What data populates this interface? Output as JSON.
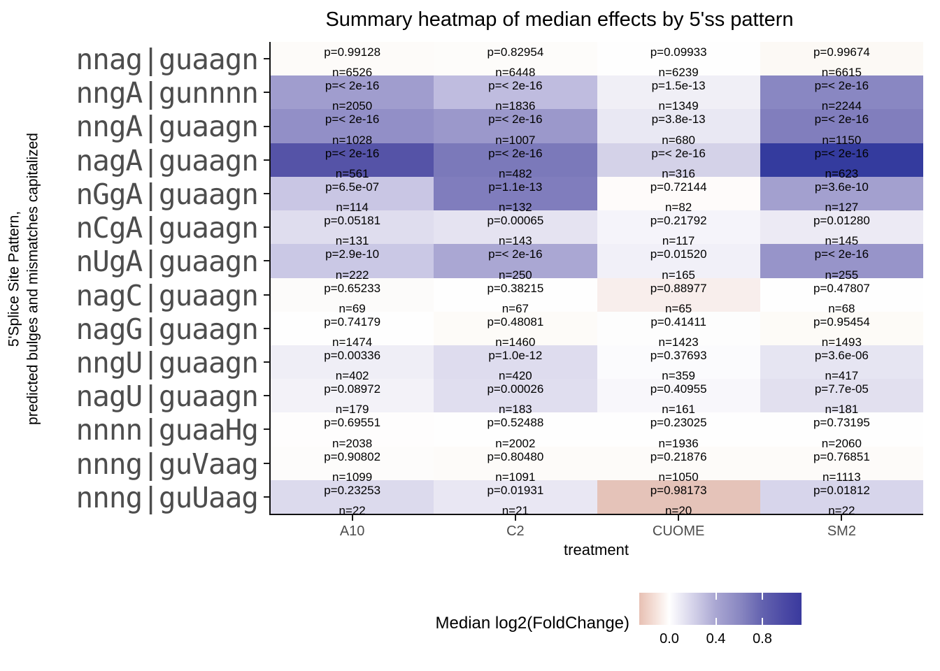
{
  "title": "Summary heatmap of median effects by 5'ss pattern",
  "y_axis": {
    "title_line1": "5'Splice Site Pattern,",
    "title_line2": "predicted bulges and mismatches capitalized"
  },
  "x_axis": {
    "title": "treatment",
    "categories": [
      "A10",
      "C2",
      "CUOME",
      "SM2"
    ]
  },
  "legend": {
    "title": "Median log2(FoldChange)",
    "tick_labels": [
      "0.0",
      "0.4",
      "0.8"
    ],
    "gradient_left_color": "#e7c0b3",
    "gradient_mid_color": "#ffffff",
    "gradient_right_color": "#3a3a9e"
  },
  "chart_data": {
    "type": "heatmap",
    "title": "Summary heatmap of median effects by 5'ss pattern",
    "xlabel": "treatment",
    "ylabel": "5'Splice Site Pattern, predicted bulges and mismatches capitalized",
    "columns": [
      "A10",
      "C2",
      "CUOME",
      "SM2"
    ],
    "cell_text_format": [
      "p=<p>",
      "n=<n>"
    ],
    "colorbar": {
      "label": "Median log2(FoldChange)",
      "tick_values": [
        0.0,
        0.4,
        0.8
      ],
      "approx_range": [
        -0.26,
        1.14
      ],
      "negative_color": "#e7c0b3",
      "zero_color": "#ffffff",
      "positive_color": "#3a3a9e"
    },
    "rows": [
      {
        "label": "nnag|guaagn",
        "cells": [
          {
            "p": "0.99128",
            "n": 6526,
            "color": "#fdfbf9"
          },
          {
            "p": "0.82954",
            "n": 6448,
            "color": "#fdfcfa"
          },
          {
            "p": "0.09933",
            "n": 6239,
            "color": "#fefefe"
          },
          {
            "p": "0.99674",
            "n": 6615,
            "color": "#fcf9f5"
          }
        ]
      },
      {
        "label": "nngA|gunnnn",
        "cells": [
          {
            "p": "< 2e-16",
            "n": 2050,
            "color": "#a09dce"
          },
          {
            "p": "< 2e-16",
            "n": 1836,
            "color": "#bfbcdf"
          },
          {
            "p": "1.5e-13",
            "n": 1349,
            "color": "#f0eff6"
          },
          {
            "p": "< 2e-16",
            "n": 2244,
            "color": "#8987c2"
          }
        ]
      },
      {
        "label": "nngA|guaagn",
        "cells": [
          {
            "p": "< 2e-16",
            "n": 1028,
            "color": "#928fc7"
          },
          {
            "p": "< 2e-16",
            "n": 1007,
            "color": "#9b98cb"
          },
          {
            "p": "3.8e-13",
            "n": 680,
            "color": "#e9e8f3"
          },
          {
            "p": "< 2e-16",
            "n": 1150,
            "color": "#817ebd"
          }
        ]
      },
      {
        "label": "nagA|guaagn",
        "cells": [
          {
            "p": "< 2e-16",
            "n": 561,
            "color": "#5553a7"
          },
          {
            "p": "< 2e-16",
            "n": 482,
            "color": "#7b79ba"
          },
          {
            "p": "< 2e-16",
            "n": 316,
            "color": "#d4d2e8"
          },
          {
            "p": "< 2e-16",
            "n": 623,
            "color": "#343b9e"
          }
        ]
      },
      {
        "label": "nGgA|guaagn",
        "cells": [
          {
            "p": "6.5e-07",
            "n": 114,
            "color": "#c9c6e4"
          },
          {
            "p": "1.1e-13",
            "n": 132,
            "color": "#807dbd"
          },
          {
            "p": "0.72144",
            "n": 82,
            "color": "#fefbfa"
          },
          {
            "p": "3.6e-10",
            "n": 127,
            "color": "#a3a0cf"
          }
        ]
      },
      {
        "label": "nCgA|guaagn",
        "cells": [
          {
            "p": "0.05181",
            "n": 131,
            "color": "#dfddee"
          },
          {
            "p": "0.00065",
            "n": 143,
            "color": "#e5e3f1"
          },
          {
            "p": "0.21792",
            "n": 117,
            "color": "#f5f4fa"
          },
          {
            "p": "0.01280",
            "n": 145,
            "color": "#eceaf4"
          }
        ]
      },
      {
        "label": "nUgA|guaagn",
        "cells": [
          {
            "p": "2.9e-10",
            "n": 222,
            "color": "#cac8e5"
          },
          {
            "p": "< 2e-16",
            "n": 250,
            "color": "#aaa7d3"
          },
          {
            "p": "0.01520",
            "n": 165,
            "color": "#f1f0f8"
          },
          {
            "p": "< 2e-16",
            "n": 255,
            "color": "#9794c9"
          }
        ]
      },
      {
        "label": "nagC|guaagn",
        "cells": [
          {
            "p": "0.65233",
            "n": 69,
            "color": "#fcfbfa"
          },
          {
            "p": "0.38215",
            "n": 67,
            "color": "#fefefe"
          },
          {
            "p": "0.88977",
            "n": 65,
            "color": "#f8eeec"
          },
          {
            "p": "0.47807",
            "n": 68,
            "color": "#fefefe"
          }
        ]
      },
      {
        "label": "nagG|guaagn",
        "cells": [
          {
            "p": "0.74179",
            "n": 1474,
            "color": "#fefefe"
          },
          {
            "p": "0.48081",
            "n": 1460,
            "color": "#fdfbf8"
          },
          {
            "p": "0.41411",
            "n": 1423,
            "color": "#fdfdfd"
          },
          {
            "p": "0.95454",
            "n": 1493,
            "color": "#fdfbf7"
          }
        ]
      },
      {
        "label": "nngU|guaagn",
        "cells": [
          {
            "p": "0.00336",
            "n": 402,
            "color": "#efeef6"
          },
          {
            "p": "1.0e-12",
            "n": 420,
            "color": "#dedcee"
          },
          {
            "p": "0.37693",
            "n": 359,
            "color": "#fbfbfd"
          },
          {
            "p": "3.6e-06",
            "n": 417,
            "color": "#e6e5f2"
          }
        ]
      },
      {
        "label": "nagU|guaagn",
        "cells": [
          {
            "p": "0.08972",
            "n": 179,
            "color": "#f3f2f8"
          },
          {
            "p": "0.00026",
            "n": 183,
            "color": "#e0deef"
          },
          {
            "p": "0.40955",
            "n": 161,
            "color": "#f8f7fb"
          },
          {
            "p": "7.7e-05",
            "n": 181,
            "color": "#e2e0ef"
          }
        ]
      },
      {
        "label": "nnnn|guaaHg",
        "cells": [
          {
            "p": "0.69551",
            "n": 2038,
            "color": "#fefdfd"
          },
          {
            "p": "0.52488",
            "n": 2002,
            "color": "#fefefe"
          },
          {
            "p": "0.23025",
            "n": 1936,
            "color": "#fefefe"
          },
          {
            "p": "0.73195",
            "n": 2060,
            "color": "#fefefe"
          }
        ]
      },
      {
        "label": "nnng|guVaag",
        "cells": [
          {
            "p": "0.90802",
            "n": 1099,
            "color": "#fdfcfb"
          },
          {
            "p": "0.80480",
            "n": 1091,
            "color": "#fdfbf9"
          },
          {
            "p": "0.21876",
            "n": 1050,
            "color": "#fdfbf9"
          },
          {
            "p": "0.76851",
            "n": 1113,
            "color": "#fdfbf9"
          }
        ]
      },
      {
        "label": "nnng|guUaag",
        "cells": [
          {
            "p": "0.23253",
            "n": 22,
            "color": "#dcdaed"
          },
          {
            "p": "0.01931",
            "n": 21,
            "color": "#e9e7f3"
          },
          {
            "p": "0.98173",
            "n": 20,
            "color": "#e5c3b9"
          },
          {
            "p": "0.01812",
            "n": 22,
            "color": "#d7d5eb"
          }
        ]
      }
    ]
  }
}
